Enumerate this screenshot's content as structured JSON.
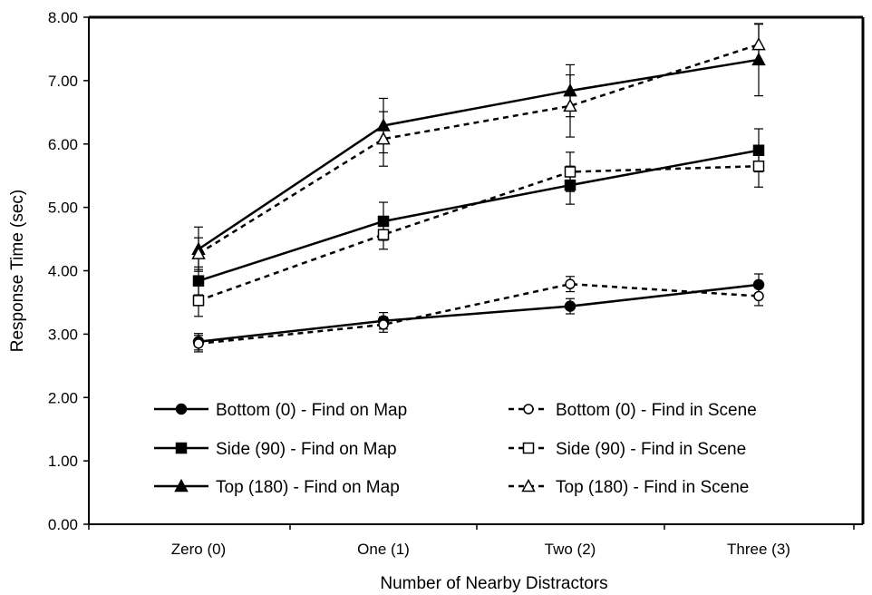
{
  "chart_data": {
    "type": "line",
    "title": "",
    "xlabel": "Number of Nearby Distractors",
    "ylabel": "Response Time (sec)",
    "categories": [
      "Zero (0)",
      "One (1)",
      "Two (2)",
      "Three (3)"
    ],
    "ylim": [
      0,
      8
    ],
    "yticks": [
      "0.00",
      "1.00",
      "2.00",
      "3.00",
      "4.00",
      "5.00",
      "6.00",
      "7.00",
      "8.00"
    ],
    "grid": false,
    "legend_position": "bottom, inside plot, two columns",
    "series": [
      {
        "name": "Bottom (0) - Find on Map",
        "values": [
          2.88,
          3.21,
          3.44,
          3.78
        ],
        "error": [
          0.13,
          0.13,
          0.12,
          0.17
        ],
        "marker": "circle",
        "filled": true,
        "dashed": false
      },
      {
        "name": "Bottom (0) - Find in Scene",
        "values": [
          2.85,
          3.15,
          3.79,
          3.6
        ],
        "error": [
          0.13,
          0.12,
          0.12,
          0.15
        ],
        "marker": "circle",
        "filled": false,
        "dashed": true
      },
      {
        "name": "Side (90) - Find on Map",
        "values": [
          3.84,
          4.78,
          5.35,
          5.9
        ],
        "error": [
          0.22,
          0.3,
          0.3,
          0.34
        ],
        "marker": "square",
        "filled": true,
        "dashed": false
      },
      {
        "name": "Side (90) - Find in Scene",
        "values": [
          3.53,
          4.57,
          5.56,
          5.65
        ],
        "error": [
          0.25,
          0.23,
          0.31,
          0.33
        ],
        "marker": "square",
        "filled": false,
        "dashed": true
      },
      {
        "name": "Top (180) - Find on Map",
        "values": [
          4.34,
          6.29,
          6.84,
          7.33
        ],
        "error": [
          0.35,
          0.43,
          0.41,
          0.57
        ],
        "marker": "triangle",
        "filled": true,
        "dashed": false
      },
      {
        "name": "Top (180) - Find in Scene",
        "values": [
          4.27,
          6.08,
          6.6,
          7.57
        ],
        "error": [
          0.25,
          0.43,
          0.49,
          0.32
        ],
        "marker": "triangle",
        "filled": false,
        "dashed": true
      }
    ]
  }
}
